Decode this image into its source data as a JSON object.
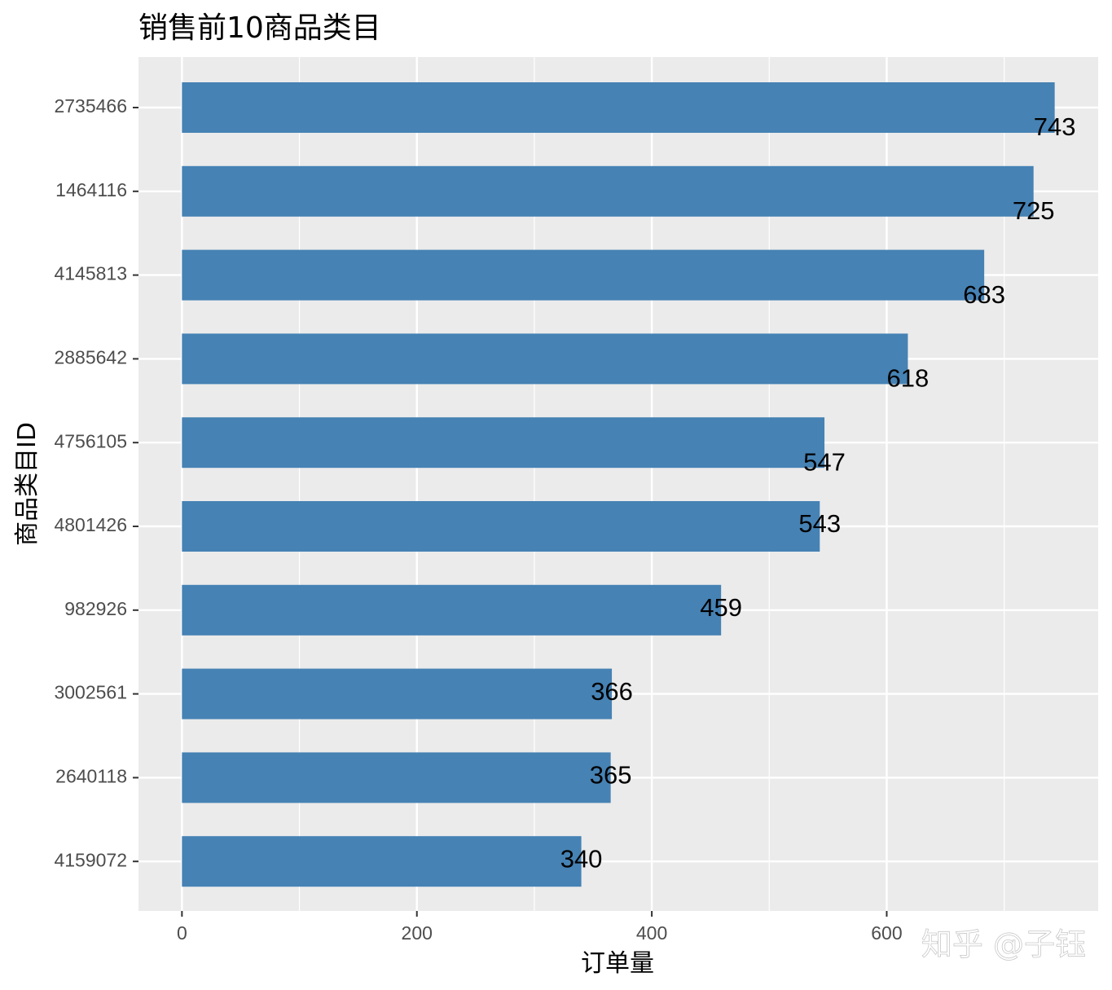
{
  "chart_data": {
    "type": "bar",
    "orientation": "horizontal",
    "title": "销售前10商品类目",
    "xlabel": "订单量",
    "ylabel": "商品类目ID",
    "categories": [
      "2735466",
      "1464116",
      "4145813",
      "2885642",
      "4756105",
      "4801426",
      "982926",
      "3002561",
      "2640118",
      "4159072"
    ],
    "values": [
      743,
      725,
      683,
      618,
      547,
      543,
      459,
      366,
      365,
      340
    ],
    "data_labels": [
      "743",
      "725",
      "683",
      "618",
      "547",
      "543",
      "459",
      "366",
      "365",
      "340"
    ],
    "xlim": [
      -37,
      780
    ],
    "x_ticks": [
      0,
      200,
      400,
      600
    ],
    "x_tick_labels": [
      "0",
      "200",
      "400",
      "600"
    ],
    "x_minor_ticks": [
      100,
      300,
      500,
      700
    ],
    "grid": true,
    "legend": "none",
    "colors": {
      "bar": "#4682B4",
      "panel": "#EBEBEB",
      "grid": "#FFFFFF",
      "tick_text": "#4D4D4D",
      "tick_mark": "#333333"
    }
  },
  "watermark": {
    "text": "知乎 @子钰"
  }
}
